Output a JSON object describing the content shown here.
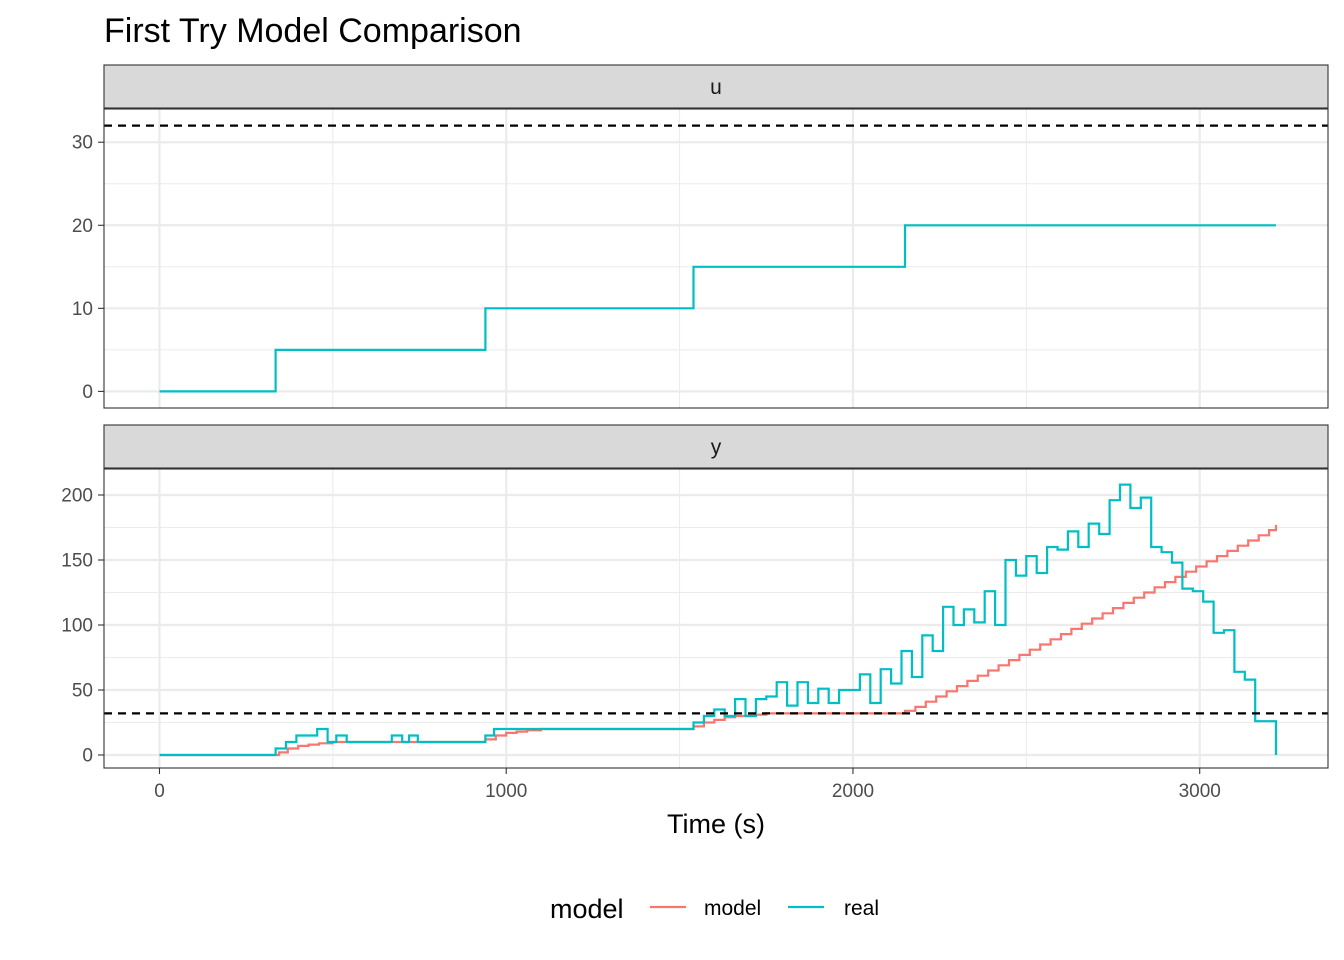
{
  "chart_data": {
    "type": "line",
    "title": "First Try Model Comparison",
    "xlabel": "Time (s)",
    "xlim": [
      -160,
      3370
    ],
    "x_ticks": [
      0,
      1000,
      2000,
      3000
    ],
    "grid": true,
    "legend": {
      "title": "model",
      "position": "bottom",
      "entries": [
        {
          "name": "model",
          "color": "#F8766D"
        },
        {
          "name": "real",
          "color": "#00BFC4"
        }
      ]
    },
    "line_style": "step",
    "facets": [
      {
        "label": "u",
        "ylim": [
          -2,
          34
        ],
        "y_ticks": [
          0,
          10,
          20,
          30
        ],
        "hline": 32,
        "series": [
          {
            "name": "real",
            "color": "#00BFC4",
            "x": [
              0,
              335,
              940,
              1540,
              2150,
              3220
            ],
            "y": [
              0,
              5,
              10,
              15,
              20,
              20
            ]
          }
        ]
      },
      {
        "label": "y",
        "ylim": [
          -10,
          220
        ],
        "y_ticks": [
          0,
          50,
          100,
          150,
          200
        ],
        "hline": 32,
        "series": [
          {
            "name": "model",
            "color": "#F8766D",
            "x": [
              0,
              345,
              370,
              400,
              430,
              460,
              500,
              540,
              940,
              970,
              1000,
              1030,
              1060,
              1100,
              1150,
              1540,
              1570,
              1600,
              1630,
              1660,
              1700,
              1750,
              2150,
              2180,
              2210,
              2240,
              2270,
              2300,
              2330,
              2360,
              2390,
              2420,
              2450,
              2480,
              2510,
              2540,
              2570,
              2600,
              2630,
              2660,
              2690,
              2720,
              2750,
              2780,
              2810,
              2840,
              2870,
              2900,
              2930,
              2960,
              2990,
              3020,
              3050,
              3080,
              3110,
              3140,
              3170,
              3200,
              3220
            ],
            "y": [
              0,
              2,
              5,
              7,
              8,
              9,
              10,
              10,
              12,
              15,
              17,
              18,
              19,
              20,
              20,
              22,
              25,
              27,
              29,
              30,
              31,
              32,
              34,
              37,
              41,
              45,
              49,
              53,
              57,
              61,
              65,
              69,
              73,
              77,
              81,
              85,
              89,
              93,
              97,
              101,
              105,
              109,
              113,
              117,
              121,
              125,
              129,
              133,
              137,
              141,
              145,
              149,
              153,
              157,
              161,
              165,
              169,
              173,
              177
            ]
          },
          {
            "name": "real",
            "color": "#00BFC4",
            "x": [
              0,
              335,
              365,
              395,
              455,
              485,
              510,
              540,
              670,
              700,
              720,
              745,
              775,
              940,
              965,
              995,
              1540,
              1570,
              1600,
              1630,
              1660,
              1690,
              1720,
              1750,
              1780,
              1810,
              1840,
              1870,
              1900,
              1930,
              1960,
              1990,
              2020,
              2050,
              2080,
              2110,
              2140,
              2170,
              2200,
              2230,
              2260,
              2290,
              2320,
              2350,
              2380,
              2410,
              2440,
              2470,
              2500,
              2530,
              2560,
              2590,
              2620,
              2650,
              2680,
              2710,
              2740,
              2770,
              2800,
              2830,
              2860,
              2890,
              2920,
              2950,
              2980,
              3010,
              3040,
              3070,
              3100,
              3130,
              3160,
              3190,
              3220
            ],
            "y": [
              0,
              5,
              10,
              15,
              20,
              10,
              15,
              10,
              15,
              10,
              15,
              10,
              10,
              15,
              20,
              20,
              25,
              30,
              35,
              30,
              43,
              30,
              43,
              45,
              56,
              38,
              56,
              40,
              51,
              40,
              50,
              50,
              62,
              40,
              66,
              55,
              80,
              60,
              92,
              80,
              114,
              100,
              112,
              102,
              126,
              100,
              150,
              138,
              153,
              140,
              160,
              158,
              172,
              160,
              178,
              170,
              196,
              208,
              190,
              198,
              160,
              156,
              148,
              128,
              126,
              118,
              94,
              96,
              64,
              58,
              26,
              26,
              0
            ]
          }
        ]
      }
    ]
  }
}
